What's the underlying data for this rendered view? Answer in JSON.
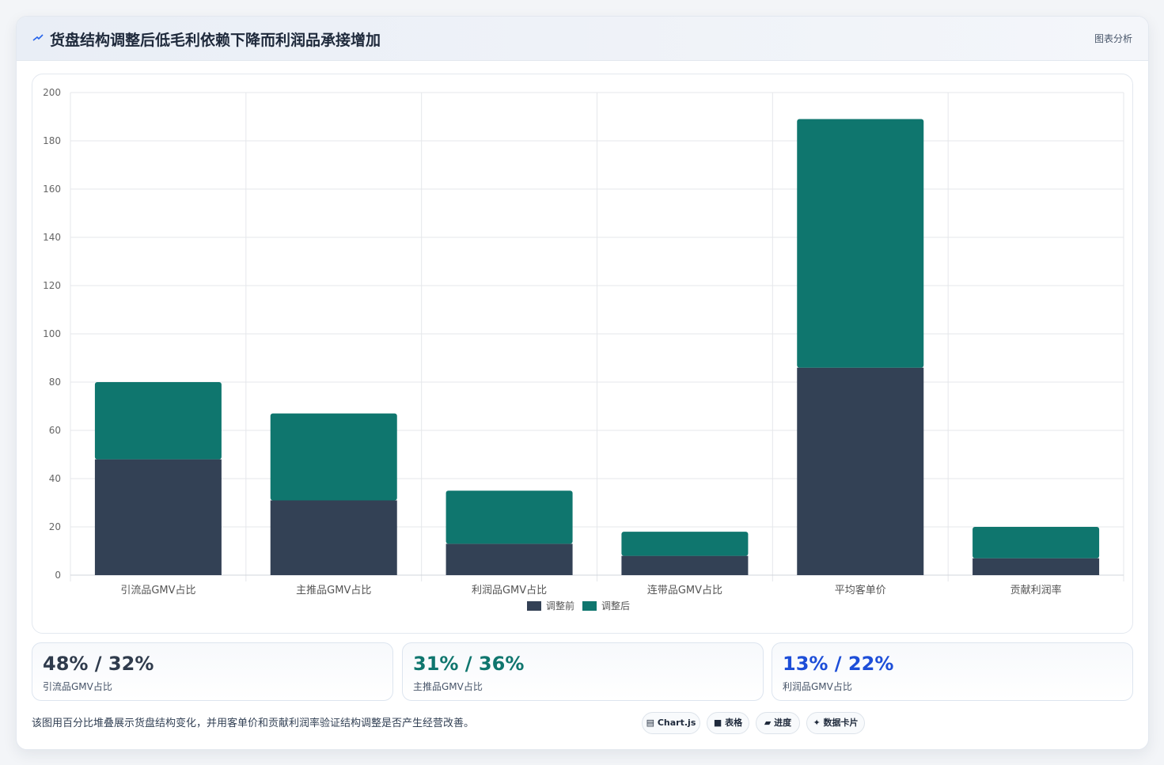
{
  "header": {
    "title": "货盘结构调整后低毛利依赖下降而利润品承接增加",
    "link_label": "图表分析"
  },
  "colors": {
    "before": "#334155",
    "after": "#0f766e",
    "stat1": "#2f3b4c",
    "stat2": "#0f766e",
    "stat3": "#1d4ed8"
  },
  "chart_data": {
    "type": "bar",
    "stacked": true,
    "categories": [
      "引流品GMV占比",
      "主推品GMV占比",
      "利润品GMV占比",
      "连带品GMV占比",
      "平均客单价",
      "贡献利润率"
    ],
    "series": [
      {
        "name": "调整前",
        "values": [
          48,
          31,
          13,
          8,
          86,
          7
        ]
      },
      {
        "name": "调整后",
        "values": [
          32,
          36,
          22,
          10,
          103,
          13
        ]
      }
    ],
    "ylim": [
      0,
      200
    ],
    "yticks": [
      "0",
      "20",
      "40",
      "60",
      "80",
      "100",
      "120",
      "140",
      "160",
      "180",
      "200"
    ],
    "grid": true,
    "legend_position": "bottom"
  },
  "stats": [
    {
      "value": "48% / 32%",
      "label": "引流品GMV占比"
    },
    {
      "value": "31% / 36%",
      "label": "主推品GMV占比"
    },
    {
      "value": "13% / 22%",
      "label": "利润品GMV占比"
    }
  ],
  "footer": {
    "note": "该图用百分比堆叠展示货盘结构变化，并用客单价和贡献利润率验证结构调整是否产生经营改善。",
    "chips": [
      {
        "icon": "chart-icon",
        "label": "Chart.js"
      },
      {
        "icon": "table-icon",
        "label": "表格"
      },
      {
        "icon": "progress-icon",
        "label": "进度"
      },
      {
        "icon": "card-icon",
        "label": "数据卡片"
      }
    ]
  }
}
